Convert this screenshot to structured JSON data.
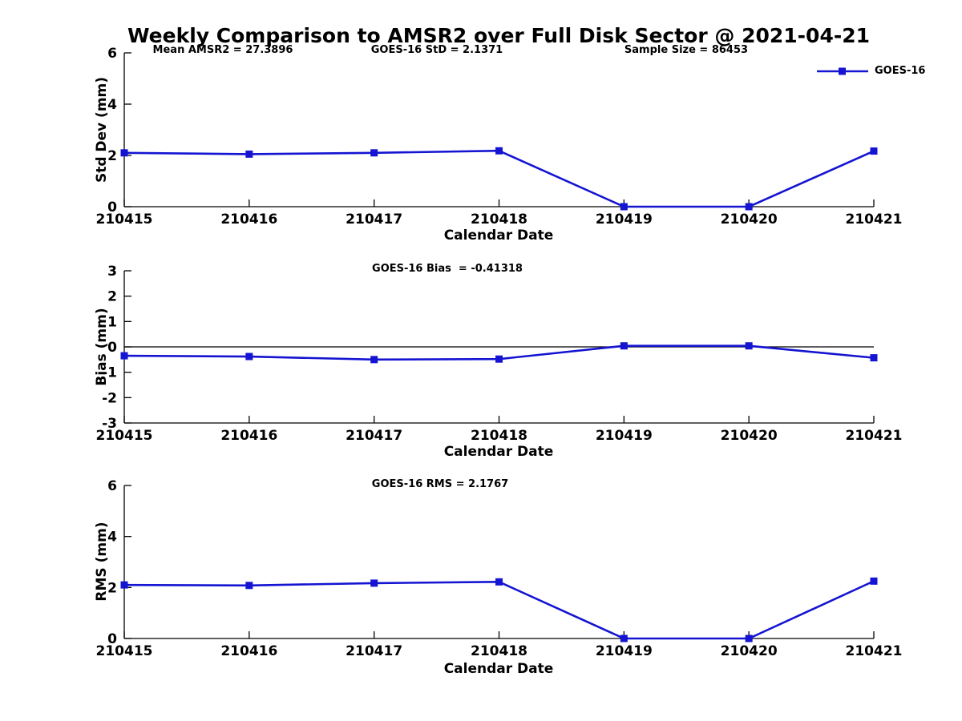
{
  "figure": {
    "title": "Weekly Comparison to AMSR2 over Full Disk Sector @ 2021-04-21",
    "background": "#ffffff",
    "line_color": "#1414d2",
    "axis_color": "#000000",
    "text_color": "#000000"
  },
  "legend": {
    "label": "GOES-16",
    "position": "top-right",
    "marker": "filled-square"
  },
  "chart_data": [
    {
      "type": "line",
      "name": "std-dev",
      "annotations": [
        "Mean AMSR2 = 27.3896",
        "GOES-16 StD = 2.1371",
        "Sample Size = 86453"
      ],
      "xlabel": "Calendar Date",
      "ylabel": "Std Dev (mm)",
      "categories": [
        "210415",
        "210416",
        "210417",
        "210418",
        "210419",
        "210420",
        "210421"
      ],
      "series": [
        {
          "name": "GOES-16",
          "values": [
            2.1,
            2.05,
            2.1,
            2.18,
            0.0,
            0.0,
            2.17
          ]
        }
      ],
      "ylim": [
        0,
        6
      ],
      "yticks": [
        0,
        2,
        4,
        6
      ],
      "zero_line": false,
      "grid": false,
      "legend_position": "top-right"
    },
    {
      "type": "line",
      "name": "bias",
      "annotations": [
        "GOES-16 Bias  = -0.41318"
      ],
      "xlabel": "Calendar Date",
      "ylabel": "Bias (mm)",
      "categories": [
        "210415",
        "210416",
        "210417",
        "210418",
        "210419",
        "210420",
        "210421"
      ],
      "series": [
        {
          "name": "GOES-16",
          "values": [
            -0.35,
            -0.38,
            -0.5,
            -0.48,
            0.04,
            0.04,
            -0.43
          ]
        }
      ],
      "ylim": [
        -3,
        3
      ],
      "yticks": [
        -3,
        -2,
        -1,
        0,
        1,
        2,
        3
      ],
      "zero_line": true,
      "grid": false,
      "legend_position": "none"
    },
    {
      "type": "line",
      "name": "rms",
      "annotations": [
        "GOES-16 RMS = 2.1767"
      ],
      "xlabel": "Calendar Date",
      "ylabel": "RMS (mm)",
      "categories": [
        "210415",
        "210416",
        "210417",
        "210418",
        "210419",
        "210420",
        "210421"
      ],
      "series": [
        {
          "name": "GOES-16",
          "values": [
            2.1,
            2.08,
            2.17,
            2.22,
            0.0,
            0.0,
            2.25
          ]
        }
      ],
      "ylim": [
        0,
        6
      ],
      "yticks": [
        0,
        2,
        4,
        6
      ],
      "zero_line": false,
      "grid": false,
      "legend_position": "none"
    }
  ]
}
